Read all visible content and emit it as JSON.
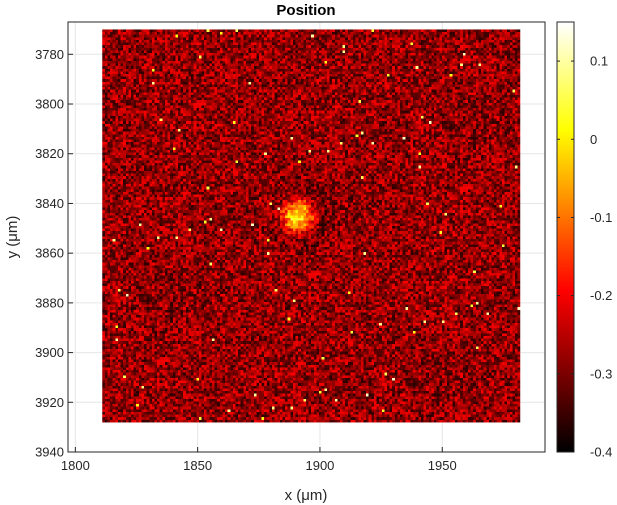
{
  "chart_data": {
    "type": "heatmap",
    "title": "Position",
    "xlabel": "x (μm)",
    "ylabel": "y (μm)",
    "xlim": [
      1797,
      1992
    ],
    "ylim": [
      3940,
      3767
    ],
    "x_ticks": [
      1800,
      1850,
      1900,
      1950
    ],
    "y_ticks": [
      3780,
      3800,
      3820,
      3840,
      3860,
      3880,
      3900,
      3920,
      3940
    ],
    "data_extent": {
      "x": [
        1811,
        1982
      ],
      "y": [
        3770,
        3928
      ]
    },
    "colormap": "hot",
    "color_range": [
      -0.4,
      0.15
    ],
    "colorbar_ticks": [
      0.1,
      0,
      -0.1,
      -0.2,
      -0.3,
      -0.4
    ],
    "colorbar_tick_labels": [
      "0.1",
      "0",
      "-0.1",
      "-0.2",
      "-0.3",
      "-0.4"
    ],
    "background_mean": -0.28,
    "peak": {
      "x": 1891,
      "y": 3845,
      "value": 0.03
    },
    "grid": true
  }
}
